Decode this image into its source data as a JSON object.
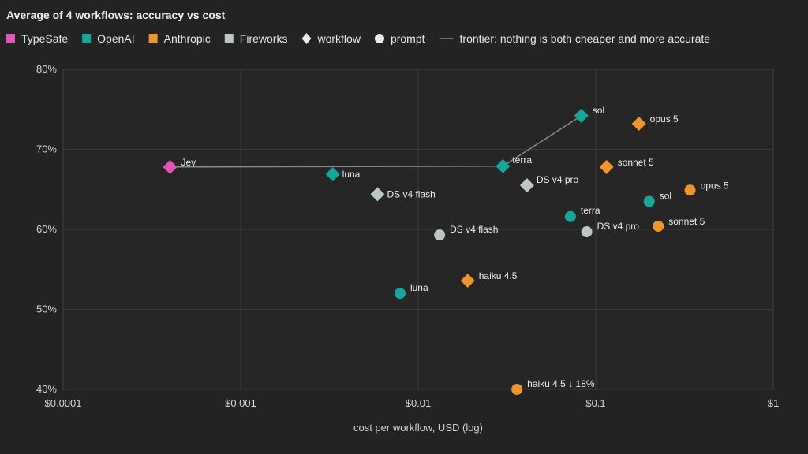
{
  "chart_data": {
    "type": "scatter",
    "title": "Average of 4 workflows: accuracy vs cost",
    "xlabel": "cost per workflow, USD (log)",
    "ylabel": "",
    "x_scale": "log",
    "xlim": [
      0.0001,
      1
    ],
    "ylim": [
      40,
      80
    ],
    "x_ticks": [
      {
        "value": 0.0001,
        "label": "$0.0001"
      },
      {
        "value": 0.001,
        "label": "$0.001"
      },
      {
        "value": 0.01,
        "label": "$0.01"
      },
      {
        "value": 0.1,
        "label": "$0.1"
      },
      {
        "value": 1,
        "label": "$1"
      }
    ],
    "y_ticks": [
      {
        "value": 40,
        "label": "40%"
      },
      {
        "value": 50,
        "label": "50%"
      },
      {
        "value": 60,
        "label": "60%"
      },
      {
        "value": 70,
        "label": "70%"
      },
      {
        "value": 80,
        "label": "80%"
      }
    ],
    "grid": true,
    "legend_position": "top",
    "legend": [
      {
        "label": "TypeSafe",
        "marker": "square",
        "color": "#e455b8"
      },
      {
        "label": "OpenAI",
        "marker": "square",
        "color": "#14a89a"
      },
      {
        "label": "Anthropic",
        "marker": "square",
        "color": "#f0952a"
      },
      {
        "label": "Fireworks",
        "marker": "square",
        "color": "#bcc6c4"
      },
      {
        "label": "workflow",
        "marker": "diamond",
        "color": "#ececec"
      },
      {
        "label": "prompt",
        "marker": "circle",
        "color": "#ececec"
      },
      {
        "label": "frontier: nothing is both cheaper and more accurate",
        "marker": "line",
        "color": "#8a8a8a"
      }
    ],
    "colors": {
      "TypeSafe": "#e455b8",
      "OpenAI": "#14a89a",
      "Anthropic": "#f0952a",
      "Fireworks": "#bcc6c4",
      "frontier": "#8a8a8a"
    },
    "points": [
      {
        "label": "Jev",
        "provider": "TypeSafe",
        "kind": "workflow",
        "x": 0.0004,
        "y": 67.8
      },
      {
        "label": "luna",
        "provider": "OpenAI",
        "kind": "workflow",
        "x": 0.0033,
        "y": 66.9
      },
      {
        "label": "terra",
        "provider": "OpenAI",
        "kind": "workflow",
        "x": 0.03,
        "y": 67.9
      },
      {
        "label": "sol",
        "provider": "OpenAI",
        "kind": "workflow",
        "x": 0.083,
        "y": 74.2
      },
      {
        "label": "opus 5",
        "provider": "Anthropic",
        "kind": "workflow",
        "x": 0.175,
        "y": 73.2
      },
      {
        "label": "sonnet 5",
        "provider": "Anthropic",
        "kind": "workflow",
        "x": 0.115,
        "y": 67.8
      },
      {
        "label": "haiku 4.5",
        "provider": "Anthropic",
        "kind": "workflow",
        "x": 0.019,
        "y": 53.6
      },
      {
        "label": "DS v4 flash",
        "provider": "Fireworks",
        "kind": "workflow",
        "x": 0.0059,
        "y": 64.4
      },
      {
        "label": "DS v4 pro",
        "provider": "Fireworks",
        "kind": "workflow",
        "x": 0.041,
        "y": 65.5
      },
      {
        "label": "luna",
        "provider": "OpenAI",
        "kind": "prompt",
        "x": 0.0079,
        "y": 52.0
      },
      {
        "label": "terra",
        "provider": "OpenAI",
        "kind": "prompt",
        "x": 0.072,
        "y": 61.6
      },
      {
        "label": "sol",
        "provider": "OpenAI",
        "kind": "prompt",
        "x": 0.2,
        "y": 63.5
      },
      {
        "label": "opus 5",
        "provider": "Anthropic",
        "kind": "prompt",
        "x": 0.34,
        "y": 64.9
      },
      {
        "label": "sonnet 5",
        "provider": "Anthropic",
        "kind": "prompt",
        "x": 0.225,
        "y": 60.4
      },
      {
        "label": "haiku 4.5 ↓ 18%",
        "provider": "Anthropic",
        "kind": "prompt",
        "x": 0.036,
        "y": 40.0
      },
      {
        "label": "DS v4 flash",
        "provider": "Fireworks",
        "kind": "prompt",
        "x": 0.0132,
        "y": 59.3
      },
      {
        "label": "DS v4 pro",
        "provider": "Fireworks",
        "kind": "prompt",
        "x": 0.089,
        "y": 59.7
      }
    ],
    "frontier": [
      {
        "x": 0.0004,
        "y": 67.8
      },
      {
        "x": 0.03,
        "y": 67.9
      },
      {
        "x": 0.083,
        "y": 74.2
      }
    ]
  }
}
